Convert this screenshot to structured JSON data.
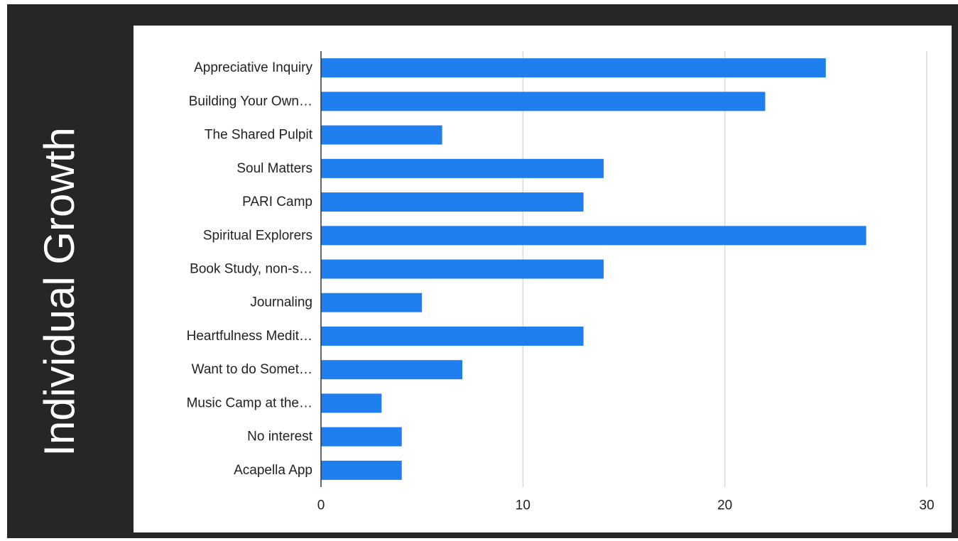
{
  "slide": {
    "title": "Individual Growth"
  },
  "colors": {
    "background": "#262626",
    "card": "#ffffff",
    "bar": "#1f7fef",
    "grid": "#d9d9d9",
    "axis": "#333333",
    "text": "#222222",
    "title_text": "#ffffff"
  },
  "chart_data": {
    "type": "bar",
    "orientation": "horizontal",
    "title": "",
    "xlabel": "",
    "ylabel": "",
    "categories": [
      "Appreciative Inquiry",
      "Building Your Own…",
      "The Shared Pulpit",
      "Soul Matters",
      "PARI Camp",
      "Spiritual Explorers",
      "Book Study, non-s…",
      "Journaling",
      "Heartfulness Medit…",
      "Want to do Somet…",
      "Music Camp at the…",
      "No interest",
      "Acapella App"
    ],
    "values": [
      25,
      22,
      6,
      14,
      13,
      27,
      14,
      5,
      13,
      7,
      3,
      4,
      4
    ],
    "xlim": [
      0,
      30
    ],
    "xticks": [
      0,
      10,
      20,
      30
    ],
    "grid": true,
    "legend": "none"
  }
}
